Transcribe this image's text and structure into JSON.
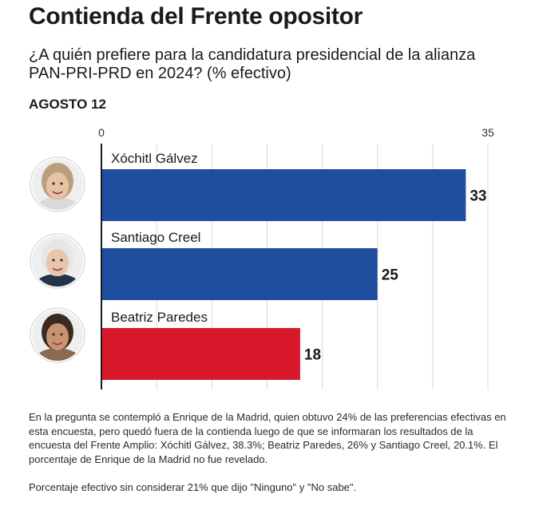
{
  "header": {
    "title": "Contienda del Frente opositor",
    "subtitle": "¿A quién prefiere para la candidatura presidencial de la alianza PAN-PRI-PRD en 2024? (% efectivo)",
    "date_label": "AGOSTO 12"
  },
  "chart_data": {
    "type": "bar",
    "orientation": "horizontal",
    "title": "Contienda del Frente opositor",
    "subtitle": "¿A quién prefiere para la candidatura presidencial de la alianza PAN-PRI-PRD en 2024? (% efectivo)",
    "categories": [
      "Xóchitl Gálvez",
      "Santiago Creel",
      "Beatriz Paredes"
    ],
    "values": [
      33,
      25,
      18
    ],
    "value_labels": [
      "33",
      "25",
      "18"
    ],
    "colors": [
      "#1f4e9e",
      "#1f4e9e",
      "#d7192b"
    ],
    "xlim": [
      0,
      35
    ],
    "tick_labels": [
      "0",
      "35"
    ],
    "grid": true,
    "xlabel": "",
    "ylabel": ""
  },
  "avatars": [
    {
      "icon": "portrait-woman-light-hair-icon",
      "skin": "#e7c2a4",
      "hair": "#b9a07a",
      "shirt": "#d9d9d9"
    },
    {
      "icon": "portrait-man-gray-hair-icon",
      "skin": "#e8c6ac",
      "hair": "#e6e6e6",
      "shirt": "#24324a"
    },
    {
      "icon": "portrait-woman-dark-curly-hair-icon",
      "skin": "#c99372",
      "hair": "#3b2a20",
      "shirt": "#8c6a50"
    }
  ],
  "notes": {
    "main": "En la pregunta se contempló a Enrique de la Madrid, quien obtuvo 24% de las preferencias efectivas en esta encuesta, pero quedó fuera de la contienda luego de que se informaran los resultados de la encuesta del Frente Amplio: Xóchitl Gálvez, 38.3%; Beatriz Paredes, 26% y Santiago Creel, 20.1%. El porcentaje de Enrique de la Madrid no fue revelado.",
    "footnote": "Porcentaje efectivo sin considerar 21% que dijo \"Ninguno\" y \"No sabe\"."
  }
}
